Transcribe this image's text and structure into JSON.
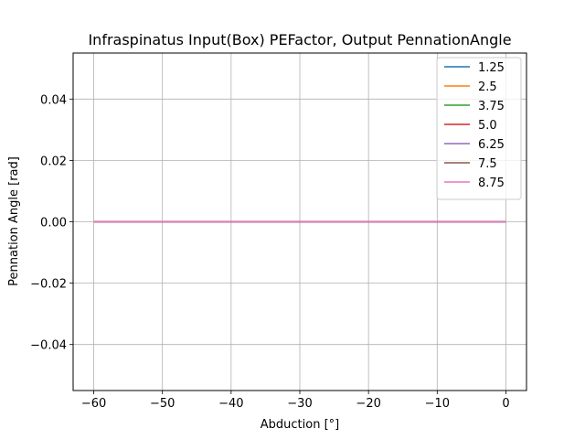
{
  "chart_data": {
    "type": "line",
    "title": "Infraspinatus Input(Box) PEFactor, Output PennationAngle",
    "xlabel": "Abduction [°]",
    "ylabel": "Pennation Angle [rad]",
    "xlim": [
      -63,
      3
    ],
    "ylim": [
      -0.055,
      0.055
    ],
    "xticks": [
      -60,
      -50,
      -40,
      -30,
      -20,
      -10,
      0
    ],
    "xtick_labels": [
      "−60",
      "−50",
      "−40",
      "−30",
      "−20",
      "−10",
      "0"
    ],
    "yticks": [
      -0.04,
      -0.02,
      0.0,
      0.02,
      0.04
    ],
    "ytick_labels": [
      "−0.04",
      "−0.02",
      "0.00",
      "0.02",
      "0.04"
    ],
    "grid": true,
    "legend_position": "top-right",
    "series": [
      {
        "name": "1.25",
        "color": "#1f77b4",
        "x": [
          -60,
          0
        ],
        "y": [
          0,
          0
        ]
      },
      {
        "name": "2.5",
        "color": "#ff7f0e",
        "x": [
          -60,
          0
        ],
        "y": [
          0,
          0
        ]
      },
      {
        "name": "3.75",
        "color": "#2ca02c",
        "x": [
          -60,
          0
        ],
        "y": [
          0,
          0
        ]
      },
      {
        "name": "5.0",
        "color": "#d62728",
        "x": [
          -60,
          0
        ],
        "y": [
          0,
          0
        ]
      },
      {
        "name": "6.25",
        "color": "#9467bd",
        "x": [
          -60,
          0
        ],
        "y": [
          0,
          0
        ]
      },
      {
        "name": "7.5",
        "color": "#8c564b",
        "x": [
          -60,
          0
        ],
        "y": [
          0,
          0
        ]
      },
      {
        "name": "8.75",
        "color": "#e377c2",
        "x": [
          -60,
          0
        ],
        "y": [
          0,
          0
        ]
      }
    ]
  }
}
